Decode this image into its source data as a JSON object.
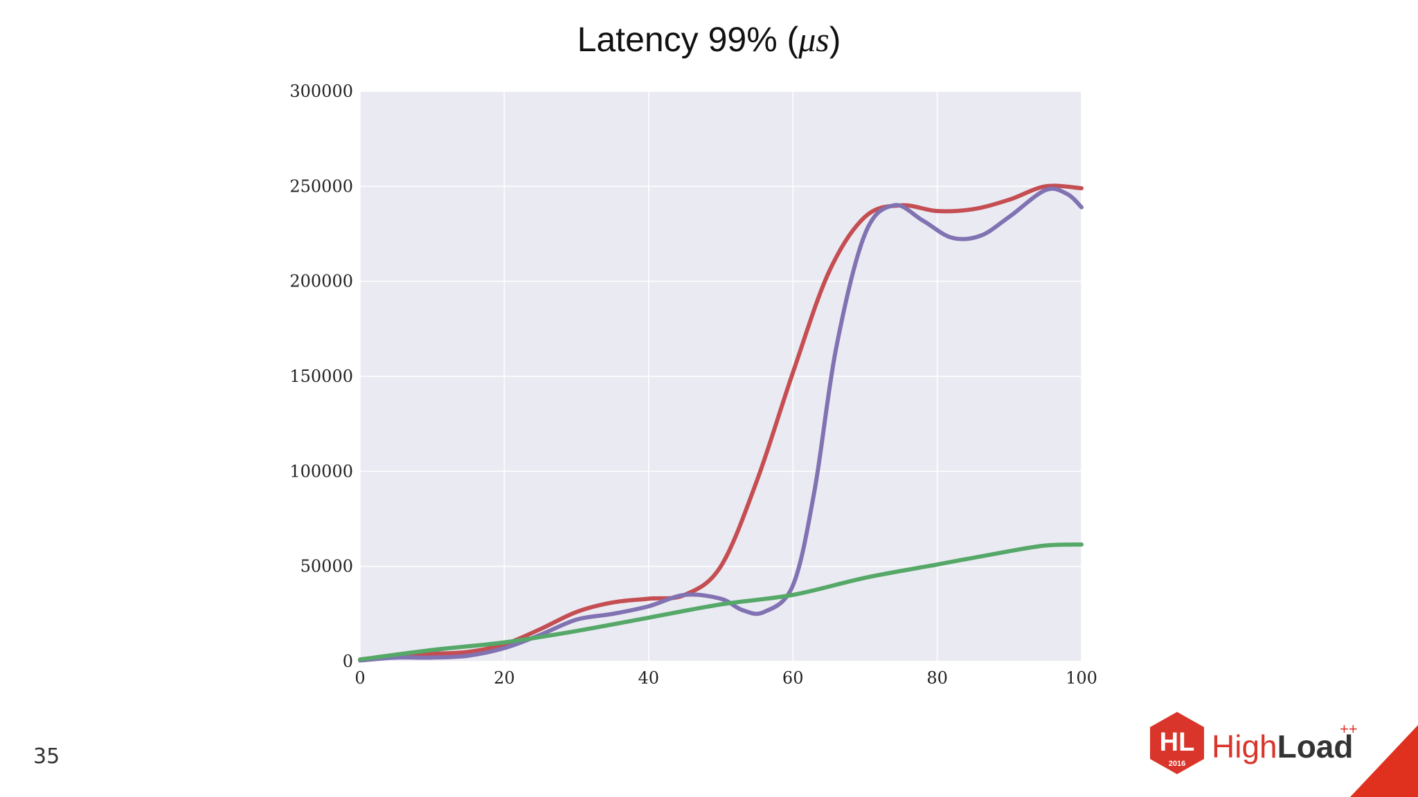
{
  "slide": {
    "title_prefix": "Latency 99% (",
    "title_math": "μs",
    "title_suffix": ")",
    "page_number": "35"
  },
  "logo": {
    "emblem_text": "HL",
    "year": "2016",
    "brand_light": "High",
    "brand_bold": "Load",
    "superscript": "++",
    "color_red": "#d9352b",
    "color_dark": "#333333"
  },
  "chart_data": {
    "type": "line",
    "title": "Latency 99% (μs)",
    "xlabel": "",
    "ylabel": "",
    "xlim": [
      0,
      100
    ],
    "ylim": [
      0,
      300000
    ],
    "x_ticks": [
      "0",
      "20",
      "40",
      "60",
      "80",
      "100"
    ],
    "y_ticks": [
      "0",
      "50000",
      "100000",
      "150000",
      "200000",
      "250000",
      "300000"
    ],
    "grid": true,
    "legend": "none",
    "series": [
      {
        "color": "#c44e52",
        "points": [
          [
            0,
            1000
          ],
          [
            5,
            3000
          ],
          [
            10,
            4000
          ],
          [
            15,
            5000
          ],
          [
            20,
            9000
          ],
          [
            25,
            17000
          ],
          [
            30,
            26000
          ],
          [
            35,
            31000
          ],
          [
            40,
            33000
          ],
          [
            45,
            35000
          ],
          [
            50,
            50000
          ],
          [
            55,
            95000
          ],
          [
            60,
            152000
          ],
          [
            65,
            205000
          ],
          [
            70,
            234000
          ],
          [
            75,
            240000
          ],
          [
            80,
            237000
          ],
          [
            85,
            238000
          ],
          [
            90,
            243000
          ],
          [
            95,
            250000
          ],
          [
            100,
            249000
          ]
        ]
      },
      {
        "color": "#8172b2",
        "points": [
          [
            0,
            500
          ],
          [
            5,
            2000
          ],
          [
            10,
            2000
          ],
          [
            15,
            3000
          ],
          [
            20,
            7000
          ],
          [
            25,
            14000
          ],
          [
            30,
            22000
          ],
          [
            35,
            25000
          ],
          [
            40,
            29000
          ],
          [
            45,
            35000
          ],
          [
            50,
            33000
          ],
          [
            53,
            27000
          ],
          [
            56,
            26000
          ],
          [
            60,
            40000
          ],
          [
            63,
            90000
          ],
          [
            66,
            165000
          ],
          [
            70,
            225000
          ],
          [
            74,
            240000
          ],
          [
            78,
            232000
          ],
          [
            82,
            223000
          ],
          [
            86,
            224000
          ],
          [
            90,
            234000
          ],
          [
            95,
            248000
          ],
          [
            98,
            246000
          ],
          [
            100,
            239000
          ]
        ]
      },
      {
        "color": "#55a868",
        "points": [
          [
            0,
            1000
          ],
          [
            10,
            6000
          ],
          [
            20,
            10000
          ],
          [
            30,
            16000
          ],
          [
            40,
            23000
          ],
          [
            50,
            30000
          ],
          [
            60,
            35000
          ],
          [
            70,
            44000
          ],
          [
            80,
            51000
          ],
          [
            90,
            58000
          ],
          [
            95,
            61000
          ],
          [
            100,
            61500
          ]
        ]
      }
    ]
  }
}
